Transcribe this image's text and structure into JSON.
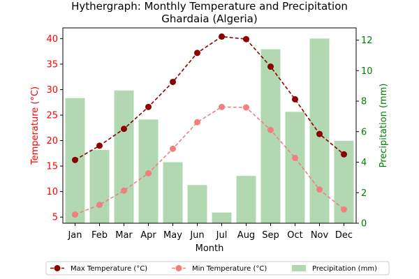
{
  "chart_data": {
    "type": "bar+line",
    "title_line1": "Hythergraph: Monthly Temperature and Precipitation",
    "title_line2": "Ghardaia (Algeria)",
    "xlabel": "Month",
    "ylabel_left": "Temperature (°C)",
    "ylabel_right": "Precipitation (mm)",
    "categories": [
      "Jan",
      "Feb",
      "Mar",
      "Apr",
      "May",
      "Jun",
      "Jul",
      "Aug",
      "Sep",
      "Oct",
      "Nov",
      "Dec"
    ],
    "ylim_left": [
      3.8,
      42.1
    ],
    "ylim_right": [
      0,
      12.8
    ],
    "yticks_left": [
      5,
      10,
      15,
      20,
      25,
      30,
      35,
      40
    ],
    "yticks_right": [
      0,
      2,
      4,
      6,
      8,
      10,
      12
    ],
    "series": [
      {
        "name": "Max Temperature (°C)",
        "axis": "left",
        "style": "line",
        "values": [
          16.2,
          19.0,
          22.3,
          26.6,
          31.5,
          37.2,
          40.4,
          39.9,
          34.5,
          28.1,
          21.3,
          17.3
        ]
      },
      {
        "name": "Min Temperature (°C)",
        "axis": "left",
        "style": "line",
        "values": [
          5.5,
          7.4,
          10.2,
          13.6,
          18.4,
          23.6,
          26.6,
          26.5,
          22.1,
          16.6,
          10.4,
          6.5
        ]
      },
      {
        "name": "Precipitation (mm)",
        "axis": "right",
        "style": "bar",
        "values": [
          8.2,
          4.8,
          8.7,
          6.8,
          4.0,
          2.5,
          0.7,
          3.1,
          11.4,
          7.3,
          12.1,
          5.4
        ]
      }
    ],
    "colors": {
      "max": "#8b0000",
      "min": "#f08080",
      "bar": "#b2d8b2",
      "left_axis": "#ff0000",
      "right_axis": "#008000"
    },
    "legend_position": "bottom-center",
    "grid": false
  }
}
